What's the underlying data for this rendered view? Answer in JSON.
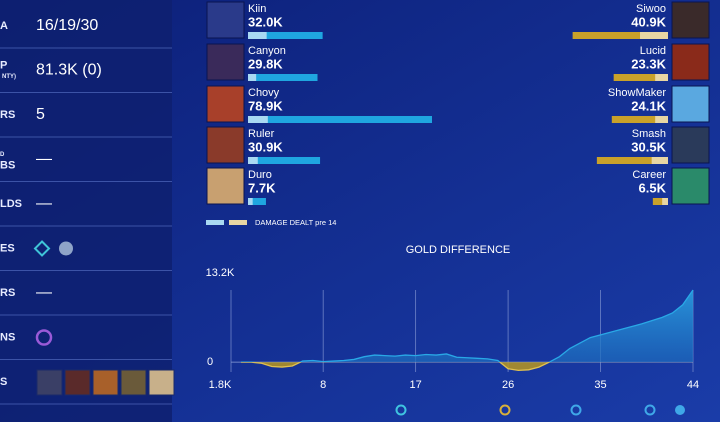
{
  "stats": {
    "rows": [
      {
        "label": [
          "A"
        ],
        "value": "16/19/30"
      },
      {
        "label": [
          "P",
          "NTY)"
        ],
        "value": "81.3K (0)"
      },
      {
        "label": [
          "RS"
        ],
        "value": "5"
      },
      {
        "label": [
          "D",
          "BS"
        ],
        "value": "—"
      },
      {
        "label": [
          "LDS"
        ],
        "value": "—"
      },
      {
        "label": [
          "ES"
        ]
      },
      {
        "label": [
          "RS"
        ],
        "value": "—"
      },
      {
        "label": [
          "NS"
        ]
      },
      {
        "label": [
          "S"
        ]
      }
    ]
  },
  "damage": {
    "legend": "DAMAGE DEALT pre 14",
    "teams": [
      {
        "color": "#1fa6e0",
        "pre_color": "#a9d9f2",
        "players": [
          {
            "name": "Kiin",
            "value": 32000,
            "value_label": "32.0K",
            "pre14": 8000
          },
          {
            "name": "Canyon",
            "value": 29800,
            "value_label": "29.8K",
            "pre14": 3500
          },
          {
            "name": "Chovy",
            "value": 78900,
            "value_label": "78.9K",
            "pre14": 8500
          },
          {
            "name": "Ruler",
            "value": 30900,
            "value_label": "30.9K",
            "pre14": 4200
          },
          {
            "name": "Duro",
            "value": 7700,
            "value_label": "7.7K",
            "pre14": 2000
          }
        ]
      },
      {
        "color": "#c9a12a",
        "pre_color": "#e8d6a3",
        "players": [
          {
            "name": "Siwoo",
            "value": 40900,
            "value_label": "40.9K",
            "pre14": 12000
          },
          {
            "name": "Lucid",
            "value": 23300,
            "value_label": "23.3K",
            "pre14": 5500
          },
          {
            "name": "ShowMaker",
            "value": 24100,
            "value_label": "24.1K",
            "pre14": 5500
          },
          {
            "name": "Smash",
            "value": 30500,
            "value_label": "30.5K",
            "pre14": 7000
          },
          {
            "name": "Career",
            "value": 6500,
            "value_label": "6.5K",
            "pre14": 2500
          }
        ]
      }
    ]
  },
  "chart_data": {
    "type": "area",
    "title": "GOLD DIFFERENCE",
    "x": [
      0,
      1,
      2,
      3,
      4,
      5,
      6,
      7,
      8,
      9,
      10,
      11,
      12,
      13,
      14,
      15,
      16,
      17,
      18,
      19,
      20,
      21,
      22,
      23,
      24,
      25,
      26,
      27,
      28,
      29,
      30,
      31,
      32,
      33,
      34,
      35,
      36,
      37,
      38,
      39,
      40,
      41,
      42,
      43,
      44
    ],
    "series": [
      {
        "name": "Gold difference",
        "color": "#29a8e6",
        "negative_color": "#b8961f",
        "values": [
          0,
          0,
          -200,
          -800,
          -900,
          -700,
          200,
          300,
          100,
          200,
          300,
          500,
          1000,
          1300,
          1200,
          1100,
          1300,
          1200,
          1400,
          1300,
          1500,
          900,
          800,
          700,
          600,
          300,
          -1200,
          -1500,
          -1400,
          -900,
          0,
          1000,
          2500,
          3500,
          4500,
          5000,
          5500,
          6000,
          6500,
          7000,
          7600,
          8200,
          9000,
          10500,
          13200
        ]
      }
    ],
    "xlim": [
      0,
      44
    ],
    "xticks": [
      8,
      17,
      26,
      35,
      44
    ],
    "ylim": [
      -1800,
      13200
    ],
    "yticks": [
      {
        "value": -1800,
        "label": "1.8K"
      },
      0,
      {
        "value": 13200,
        "label": "13.2K"
      }
    ],
    "grid": true
  }
}
